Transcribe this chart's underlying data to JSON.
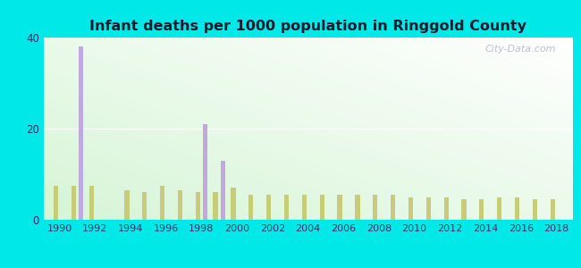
{
  "title": "Infant deaths per 1000 population in Ringgold County",
  "years": [
    1990,
    1991,
    1992,
    1993,
    1994,
    1995,
    1996,
    1997,
    1998,
    1999,
    2000,
    2001,
    2002,
    2003,
    2004,
    2005,
    2006,
    2007,
    2008,
    2009,
    2010,
    2011,
    2012,
    2013,
    2014,
    2015,
    2016,
    2017,
    2018
  ],
  "ringgold_values": [
    0,
    38,
    0,
    0,
    0,
    0,
    0,
    0,
    21,
    13,
    0,
    0,
    0,
    0,
    0,
    0,
    0,
    0,
    0,
    0,
    0,
    0,
    0,
    0,
    0,
    0,
    0,
    0,
    0
  ],
  "iowa_values": [
    7.5,
    7.5,
    7.5,
    0,
    6.5,
    6.0,
    7.5,
    6.5,
    6.0,
    6.0,
    7.0,
    5.5,
    5.5,
    5.5,
    5.5,
    5.5,
    5.5,
    5.5,
    5.5,
    5.5,
    5.0,
    5.0,
    5.0,
    4.5,
    4.5,
    5.0,
    5.0,
    4.5,
    4.5
  ],
  "ringgold_color": "#c0a8e0",
  "iowa_color": "#c8cc7a",
  "background_outer": "#00e8e8",
  "ylim": [
    0,
    40
  ],
  "yticks": [
    0,
    20,
    40
  ],
  "bar_width": 0.38,
  "title_fontsize": 11.5,
  "watermark": "City-Data.com"
}
